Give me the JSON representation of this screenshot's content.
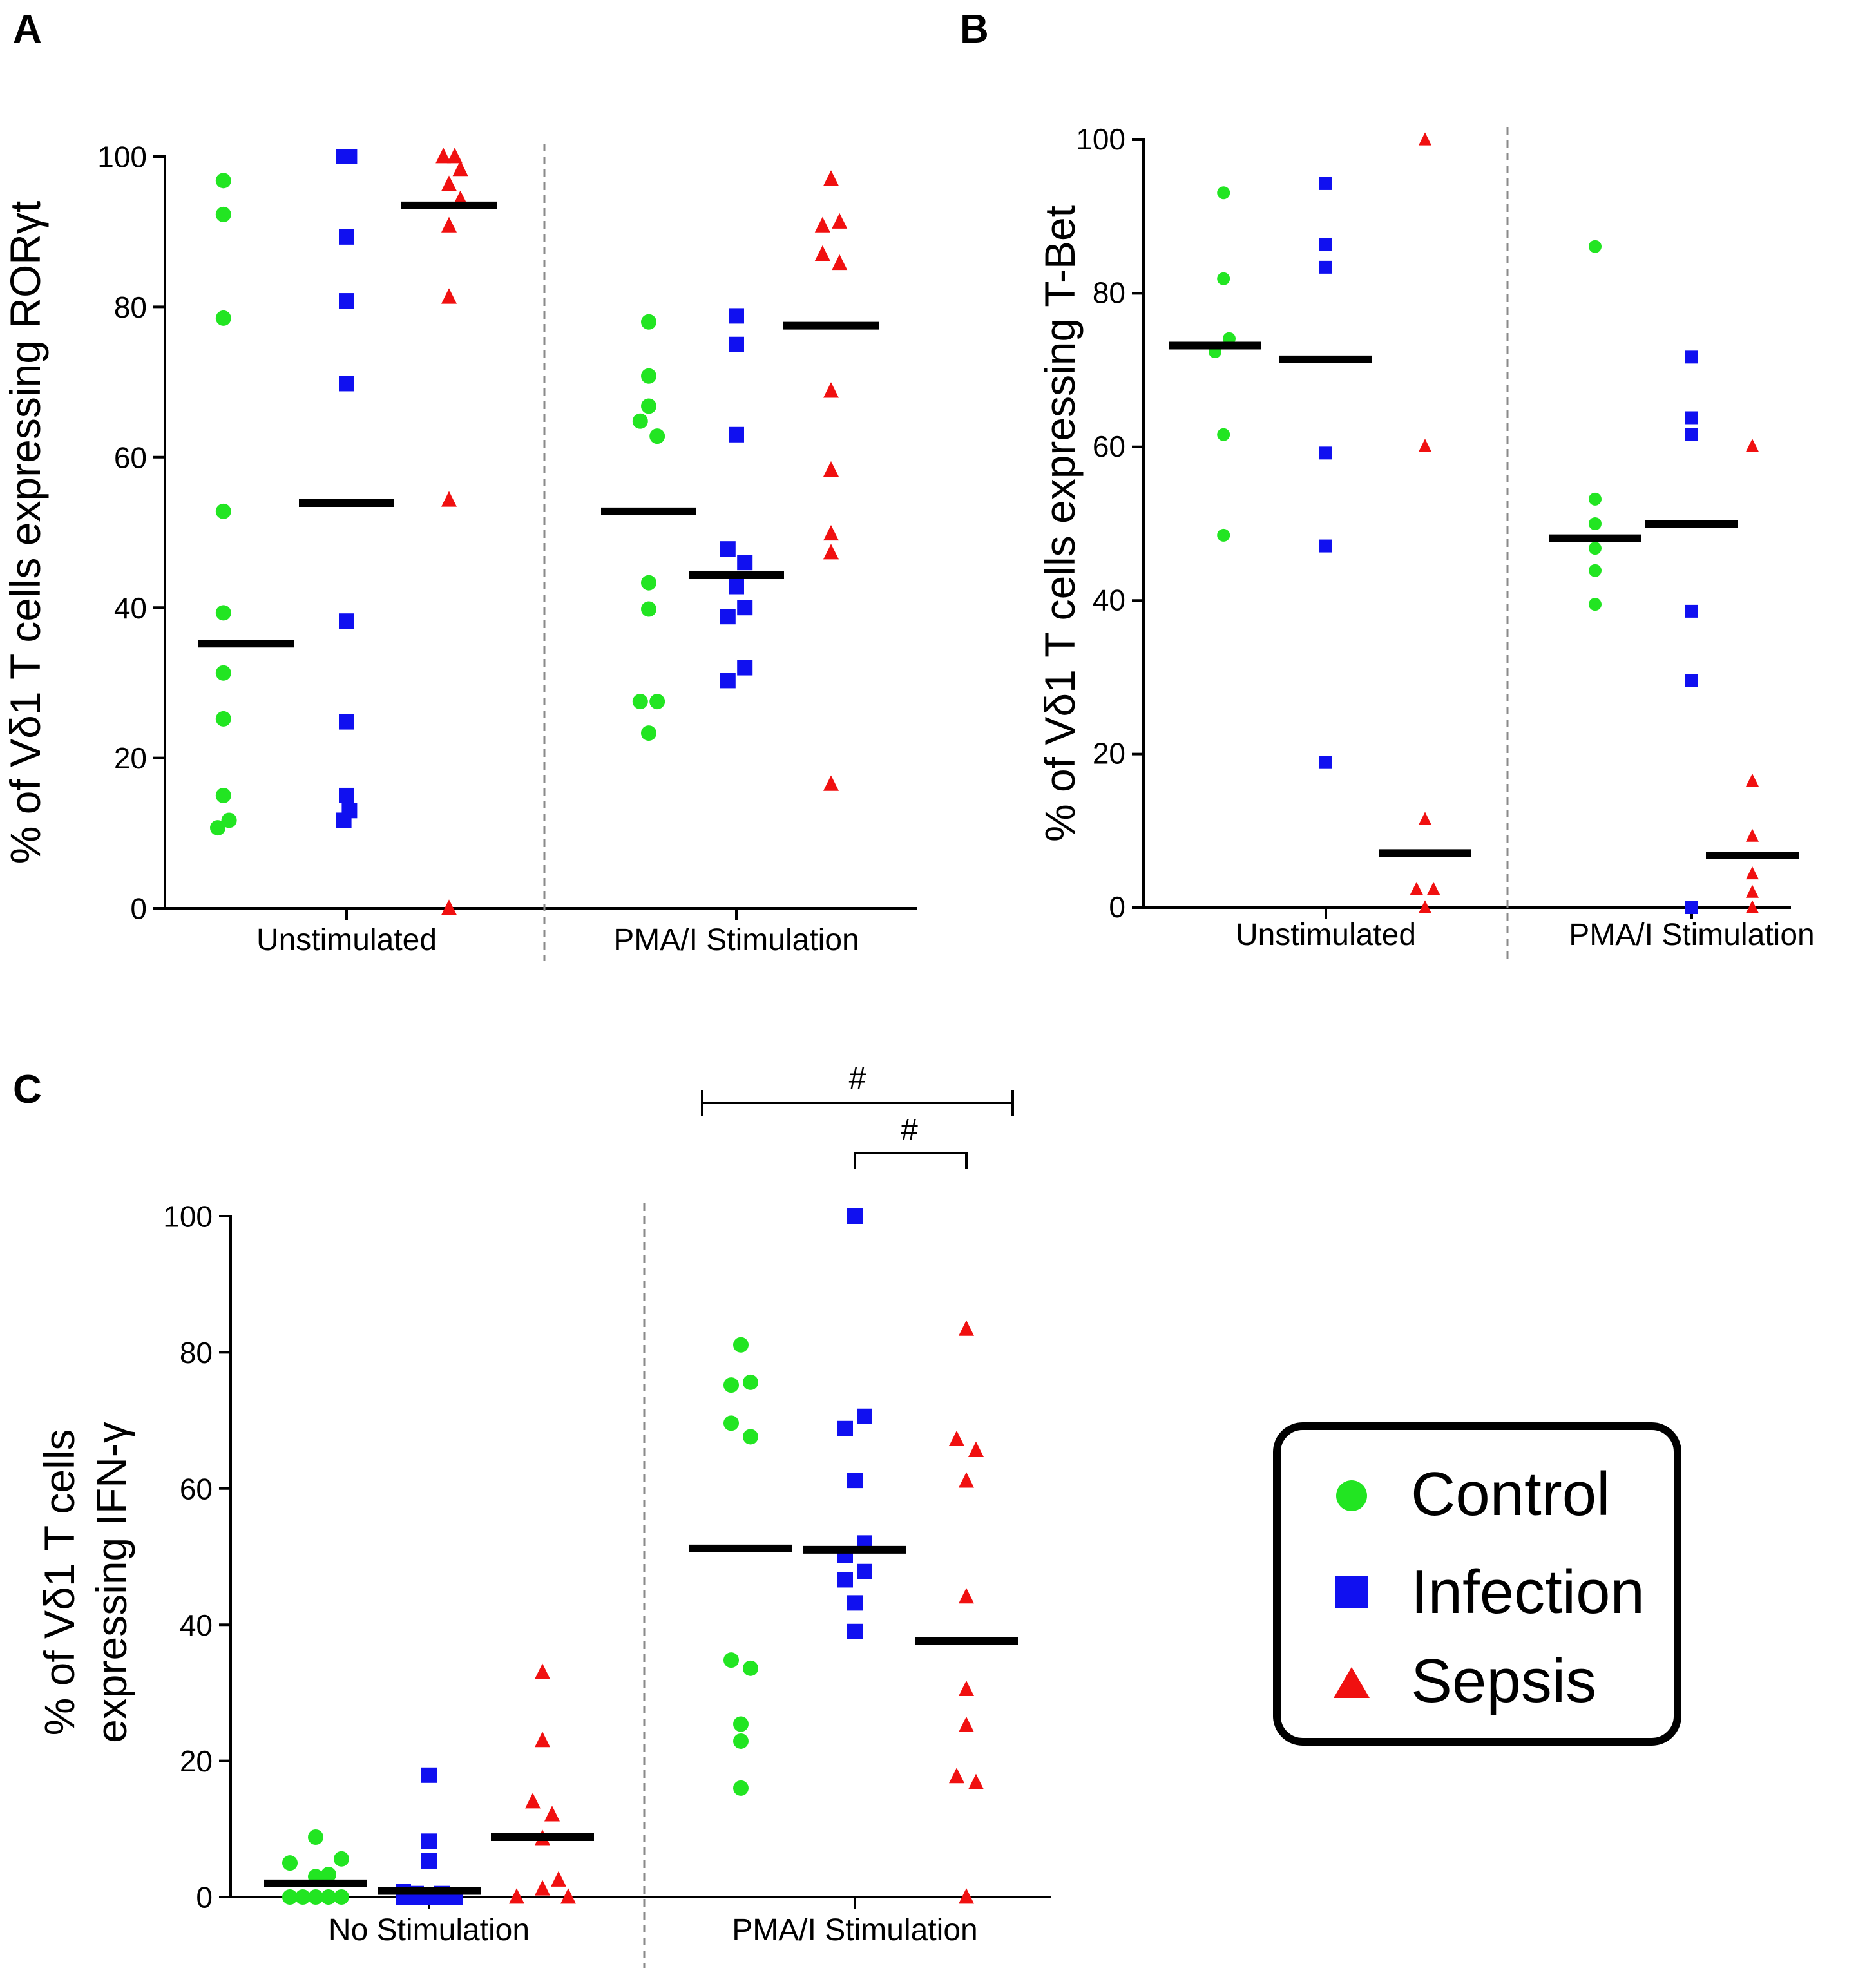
{
  "colors": {
    "control": "#22e522",
    "infection": "#1010f0",
    "sepsis": "#f01010"
  },
  "legend": {
    "items": [
      {
        "key": "control",
        "label": "Control",
        "marker": "circle"
      },
      {
        "key": "infection",
        "label": "Infection",
        "marker": "square"
      },
      {
        "key": "sepsis",
        "label": "Sepsis",
        "marker": "triangle"
      }
    ]
  },
  "chart_data": [
    {
      "panel": "A",
      "type": "scatter",
      "ylabel": "% of Vδ1 T cells expressing RORγt",
      "ylim": [
        0,
        100
      ],
      "yticks": [
        0,
        20,
        40,
        60,
        80,
        100
      ],
      "groups": [
        {
          "label": "Unstimulated",
          "series": [
            {
              "name": "Control",
              "median": 35.2,
              "points": [
                [
                  -0.8,
                  96.8
                ],
                [
                  -0.8,
                  92.3
                ],
                [
                  -0.8,
                  78.5
                ],
                [
                  -0.8,
                  52.8
                ],
                [
                  -0.8,
                  39.3
                ],
                [
                  -0.8,
                  31.3
                ],
                [
                  -0.8,
                  25.2
                ],
                [
                  -0.8,
                  15.0
                ],
                [
                  -1.0,
                  10.7
                ],
                [
                  -0.6,
                  11.7
                ]
              ]
            },
            {
              "name": "Infection",
              "median": 53.9,
              "points": [
                [
                  -0.1,
                  100
                ],
                [
                  0.1,
                  100
                ],
                [
                  0,
                  89.3
                ],
                [
                  0,
                  80.8
                ],
                [
                  0,
                  69.8
                ],
                [
                  0,
                  38.2
                ],
                [
                  0,
                  24.8
                ],
                [
                  0,
                  15.0
                ],
                [
                  -0.1,
                  11.7
                ],
                [
                  0.1,
                  13.0
                ]
              ]
            },
            {
              "name": "Sepsis",
              "median": 93.5,
              "points": [
                [
                  -0.2,
                  100
                ],
                [
                  0.2,
                  100
                ],
                [
                  0,
                  96.3
                ],
                [
                  0.4,
                  98.3
                ],
                [
                  0.4,
                  94.3
                ],
                [
                  0,
                  90.8
                ],
                [
                  0,
                  81.3
                ],
                [
                  0,
                  54.3
                ],
                [
                  0,
                  0
                ]
              ]
            }
          ]
        },
        {
          "label": "PMA/I Stimulation",
          "series": [
            {
              "name": "Control",
              "median": 52.8,
              "points": [
                [
                  0,
                  78.0
                ],
                [
                  0,
                  70.8
                ],
                [
                  0,
                  66.8
                ],
                [
                  -0.3,
                  64.8
                ],
                [
                  0.3,
                  62.8
                ],
                [
                  0,
                  43.3
                ],
                [
                  0,
                  39.8
                ],
                [
                  -0.3,
                  27.5
                ],
                [
                  0.3,
                  27.5
                ],
                [
                  0,
                  23.3
                ]
              ]
            },
            {
              "name": "Infection",
              "median": 44.3,
              "points": [
                [
                  0,
                  78.8
                ],
                [
                  0,
                  75.0
                ],
                [
                  0,
                  63.0
                ],
                [
                  -0.3,
                  47.8
                ],
                [
                  0.3,
                  46.0
                ],
                [
                  0,
                  42.8
                ],
                [
                  -0.3,
                  38.8
                ],
                [
                  0.3,
                  40.0
                ],
                [
                  -0.3,
                  30.3
                ],
                [
                  0.3,
                  32.0
                ]
              ]
            },
            {
              "name": "Sepsis",
              "median": 77.5,
              "points": [
                [
                  0,
                  97.0
                ],
                [
                  -0.3,
                  90.8
                ],
                [
                  0.3,
                  91.3
                ],
                [
                  -0.3,
                  87.0
                ],
                [
                  0.3,
                  85.8
                ],
                [
                  0,
                  68.8
                ],
                [
                  0,
                  58.3
                ],
                [
                  0,
                  49.8
                ],
                [
                  0,
                  47.3
                ],
                [
                  0,
                  16.5
                ]
              ]
            }
          ]
        }
      ]
    },
    {
      "panel": "B",
      "type": "scatter",
      "ylabel": "% of Vδ1 T cells expressing T-Bet",
      "ylim": [
        0,
        100
      ],
      "yticks": [
        0,
        20,
        40,
        60,
        80,
        100
      ],
      "groups": [
        {
          "label": "Unstimulated",
          "series": [
            {
              "name": "Control",
              "median": 73.2,
              "points": [
                [
                  0.3,
                  93.1
                ],
                [
                  0.3,
                  81.9
                ],
                [
                  0.5,
                  74.1
                ],
                [
                  0,
                  72.4
                ],
                [
                  0.3,
                  61.6
                ],
                [
                  0.3,
                  48.5
                ]
              ]
            },
            {
              "name": "Infection",
              "median": 71.4,
              "points": [
                [
                  0,
                  94.3
                ],
                [
                  0,
                  86.4
                ],
                [
                  0,
                  83.4
                ],
                [
                  0,
                  59.2
                ],
                [
                  0,
                  47.1
                ],
                [
                  0,
                  18.9
                ]
              ]
            },
            {
              "name": "Sepsis",
              "median": 7.1,
              "points": [
                [
                  0,
                  100
                ],
                [
                  0,
                  60.1
                ],
                [
                  0,
                  11.5
                ],
                [
                  -0.3,
                  2.4
                ],
                [
                  0.3,
                  2.4
                ],
                [
                  0,
                  0
                ]
              ]
            }
          ]
        },
        {
          "label": "PMA/I Stimulation",
          "series": [
            {
              "name": "Control",
              "median": 48.1,
              "points": [
                [
                  0,
                  86.1
                ],
                [
                  0,
                  53.2
                ],
                [
                  0,
                  50.0
                ],
                [
                  0,
                  46.8
                ],
                [
                  0,
                  43.9
                ],
                [
                  0,
                  39.5
                ]
              ]
            },
            {
              "name": "Infection",
              "median": 50.0,
              "points": [
                [
                  0,
                  71.7
                ],
                [
                  0,
                  63.8
                ],
                [
                  0,
                  61.6
                ],
                [
                  0,
                  38.6
                ],
                [
                  0,
                  29.6
                ],
                [
                  0,
                  0
                ]
              ]
            },
            {
              "name": "Sepsis",
              "median": 6.8,
              "points": [
                [
                  0,
                  60.1
                ],
                [
                  0,
                  16.5
                ],
                [
                  0,
                  9.3
                ],
                [
                  0,
                  4.4
                ],
                [
                  0,
                  2.0
                ],
                [
                  0,
                  0
                ]
              ]
            }
          ]
        }
      ]
    },
    {
      "panel": "C",
      "type": "scatter",
      "ylabel": [
        "% of Vδ1 T cells",
        "expressing IFN-γ"
      ],
      "ylim": [
        0,
        100
      ],
      "yticks": [
        0,
        20,
        40,
        60,
        80,
        100
      ],
      "groups": [
        {
          "label": "No Stimulation",
          "series": [
            {
              "name": "Control",
              "median": 2.0,
              "points": [
                [
                  -0.8,
                  5.0
                ],
                [
                  0,
                  8.8
                ],
                [
                  0,
                  3.0
                ],
                [
                  0.8,
                  5.6
                ],
                [
                  0.4,
                  3.3
                ],
                [
                  -0.8,
                  0
                ],
                [
                  -0.4,
                  0
                ],
                [
                  0,
                  0
                ],
                [
                  0.4,
                  0
                ],
                [
                  0.8,
                  0
                ]
              ]
            },
            {
              "name": "Infection",
              "median": 0.9,
              "points": [
                [
                  0,
                  17.9
                ],
                [
                  0,
                  8.2
                ],
                [
                  0,
                  5.3
                ],
                [
                  -0.8,
                  0.8
                ],
                [
                  -0.4,
                  0.5
                ],
                [
                  0.4,
                  0.5
                ],
                [
                  -0.8,
                  0
                ],
                [
                  -0.4,
                  0
                ],
                [
                  0,
                  0
                ],
                [
                  0.4,
                  0
                ],
                [
                  0.8,
                  0
                ]
              ]
            },
            {
              "name": "Sepsis",
              "median": 8.8,
              "points": [
                [
                  0,
                  33.0
                ],
                [
                  0,
                  23.0
                ],
                [
                  -0.3,
                  14.0
                ],
                [
                  0.3,
                  12.1
                ],
                [
                  0,
                  8.6
                ],
                [
                  0.5,
                  2.5
                ],
                [
                  0,
                  1.2
                ],
                [
                  -0.8,
                  0
                ],
                [
                  0.8,
                  0
                ]
              ]
            }
          ]
        },
        {
          "label": "PMA/I Stimulation",
          "series": [
            {
              "name": "Control",
              "median": 51.2,
              "points": [
                [
                  0,
                  81.1
                ],
                [
                  -0.3,
                  75.2
                ],
                [
                  0.3,
                  75.6
                ],
                [
                  -0.3,
                  69.6
                ],
                [
                  0.3,
                  67.6
                ],
                [
                  -0.3,
                  34.8
                ],
                [
                  0.3,
                  33.6
                ],
                [
                  0,
                  25.4
                ],
                [
                  0,
                  22.9
                ],
                [
                  0,
                  16.0
                ]
              ]
            },
            {
              "name": "Infection",
              "median": 51.0,
              "points": [
                [
                  0,
                  100
                ],
                [
                  0.3,
                  70.6
                ],
                [
                  -0.3,
                  68.8
                ],
                [
                  0,
                  61.2
                ],
                [
                  0.3,
                  52.0
                ],
                [
                  -0.3,
                  50.2
                ],
                [
                  0.3,
                  47.8
                ],
                [
                  -0.3,
                  46.6
                ],
                [
                  0,
                  43.2
                ],
                [
                  0,
                  39.0
                ]
              ]
            },
            {
              "name": "Sepsis",
              "median": 37.6,
              "points": [
                [
                  0,
                  83.4
                ],
                [
                  -0.3,
                  67.2
                ],
                [
                  0.3,
                  65.6
                ],
                [
                  0,
                  61.1
                ],
                [
                  0,
                  44.1
                ],
                [
                  0,
                  30.5
                ],
                [
                  0,
                  25.2
                ],
                [
                  -0.3,
                  17.7
                ],
                [
                  0.3,
                  16.8
                ],
                [
                  0,
                  0
                ]
              ]
            }
          ]
        }
      ],
      "significance": [
        {
          "label": "#",
          "from": "PMA/I Stimulation:Control",
          "to": "PMA/I Stimulation:Sepsis"
        },
        {
          "label": "#",
          "from": "PMA/I Stimulation:Infection",
          "to": "PMA/I Stimulation:Sepsis"
        }
      ]
    }
  ]
}
